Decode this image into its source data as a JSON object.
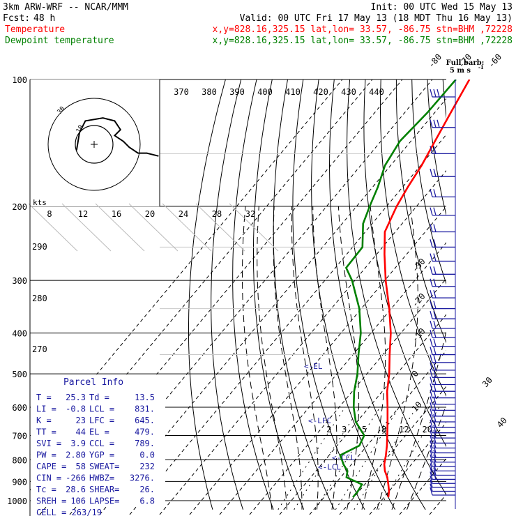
{
  "header": {
    "model": "3km ARW-WRF -- NCAR/MMM",
    "init": "Init: 00 UTC Wed 15 May 13",
    "fcst_label": "Fcst:",
    "fcst_value": "48 h",
    "valid": "Valid: 00 UTC Fri 17 May 13 (18 MDT Thu 16 May 13)",
    "temp_label": "Temperature",
    "temp_loc": "x,y=828.16,325.15   lat,lon= 33.57, -86.75  stn=BHM ,72228",
    "dew_label": "Dewpoint temperature",
    "dew_loc": "x,y=828.16,325.15   lat,lon= 33.57, -86.75  stn=BHM ,72228",
    "barb_note_1": "Full barb:",
    "barb_note_2": "5 m s",
    "barb_note_sup": "-1"
  },
  "colors": {
    "temperature": "#ff0000",
    "dewpoint": "#008000",
    "text_blue": "#1a1aa0",
    "barbs": "#1a1aa0"
  },
  "chart_data": {
    "type": "line",
    "title": "",
    "xlabel": "",
    "ylabel": "",
    "y_scale": "log-pressure",
    "ylim": [
      1000,
      100
    ],
    "pressure_levels": [
      100,
      200,
      300,
      400,
      500,
      600,
      700,
      800,
      900,
      1000
    ],
    "pressure_tick_labels": [
      "100",
      "200",
      "300",
      "400",
      "500",
      "600",
      "700",
      "800",
      "900",
      "1000"
    ],
    "isotherm_labels": [
      "-80",
      "-70",
      "-60",
      "-50",
      "-40",
      "-30",
      "-20",
      "-10",
      "0",
      "10",
      "30",
      "40"
    ],
    "isotherm_label_values": [
      -80,
      -70,
      -60,
      -50,
      -40,
      -30,
      -20,
      -10,
      0,
      10,
      30,
      40
    ],
    "theta_labels": [
      "370",
      "380",
      "390",
      "400",
      "410",
      "420",
      "430",
      "440"
    ],
    "theta_left_labels": [
      "290",
      "280",
      "270"
    ],
    "mixing_ratio_labels": [
      "2",
      "3",
      "5",
      "8",
      "12",
      "20"
    ],
    "mixing_ratio_values": [
      2,
      3,
      5,
      8,
      12,
      20
    ],
    "series": [
      {
        "name": "Temperature",
        "pressure": [
          982,
          950,
          915,
          880,
          850,
          820,
          780,
          740,
          700,
          650,
          600,
          550,
          500,
          450,
          400,
          350,
          300,
          260,
          230,
          200,
          180,
          160,
          140,
          120,
          100
        ],
        "temperature_c": [
          25.3,
          23.8,
          21.6,
          19.2,
          16.6,
          14.5,
          12.4,
          10.0,
          7.2,
          3.4,
          -0.8,
          -5.5,
          -9.8,
          -15.2,
          -21.0,
          -28.5,
          -37.8,
          -45.7,
          -52.0,
          -55.4,
          -57.2,
          -58.8,
          -61.3,
          -64.2,
          -67.5
        ]
      },
      {
        "name": "Dewpoint temperature",
        "pressure": [
          982,
          950,
          915,
          880,
          850,
          820,
          780,
          740,
          700,
          650,
          600,
          550,
          500,
          450,
          400,
          350,
          300,
          280,
          250,
          220,
          200,
          180,
          160,
          140,
          120,
          100
        ],
        "temperature_c": [
          13.5,
          13.4,
          12.8,
          5.6,
          4.1,
          0.9,
          -2.8,
          0.8,
          -0.5,
          -7.2,
          -12.1,
          -16.5,
          -20.4,
          -25.6,
          -31.0,
          -38.5,
          -49.0,
          -54.6,
          -55.1,
          -61.6,
          -64.4,
          -67.2,
          -71.0,
          -73.0,
          -72.0,
          -72.0
        ]
      }
    ],
    "annotations": [
      "EL",
      "LFC",
      "CCL",
      "LCL"
    ],
    "annotation_pressures": [
      479,
      645,
      789,
      831
    ],
    "hodograph": {
      "units": "kts",
      "ring_labels": [
        "8",
        "12",
        "16",
        "20",
        "24",
        "28",
        "32"
      ],
      "small_ring_labels": [
        "10",
        "30"
      ],
      "trace_u": [
        -6,
        -5,
        -3,
        3,
        7,
        9,
        7,
        10,
        12,
        15,
        18,
        22
      ],
      "trace_v": [
        -2,
        4,
        8,
        9,
        8,
        5,
        3,
        1,
        -1,
        -3,
        -3,
        -4
      ]
    },
    "wind_barbs": {
      "pressure": [
        110,
        130,
        150,
        170,
        190,
        210,
        230,
        250,
        270,
        290,
        310,
        330,
        350,
        370,
        390,
        410,
        430,
        450,
        470,
        490,
        510,
        530,
        550,
        570,
        590,
        610,
        630,
        650,
        670,
        690,
        710,
        730,
        750,
        770,
        790,
        810,
        830,
        850,
        870,
        890,
        910,
        930,
        950,
        970
      ],
      "speed_ms": [
        15,
        15,
        10,
        10,
        10,
        10,
        10,
        10,
        10,
        10,
        10,
        10,
        10,
        10,
        10,
        10,
        10,
        10,
        10,
        10,
        10,
        10,
        10,
        10,
        10,
        10,
        10,
        10,
        10,
        10,
        10,
        10,
        10,
        10,
        10,
        10,
        10,
        10,
        10,
        10,
        5,
        5,
        5,
        5
      ]
    }
  },
  "parcel_info": {
    "title": "Parcel Info",
    "rows": [
      [
        "T  =",
        "25.3",
        "Td =",
        "13.5"
      ],
      [
        "LI =",
        "-0.8",
        "LCL =",
        "831."
      ],
      [
        "K  =",
        "23",
        "LFC =",
        "645."
      ],
      [
        "TT =",
        "44",
        "EL =",
        "479."
      ],
      [
        "SVI =",
        "3.9",
        "CCL =",
        "789."
      ],
      [
        "PW =",
        "2.80",
        "YGP =",
        "0.0"
      ],
      [
        "CAPE =",
        "58",
        "SWEAT=",
        "232"
      ],
      [
        "CIN =",
        "-266",
        "HWBZ=",
        "3276."
      ],
      [
        "Tc =",
        "28.6",
        "SHEAR=",
        "26."
      ],
      [
        "SREH =",
        "106",
        "LAPSE=",
        "6.8"
      ]
    ],
    "cell": "CELL = 263/19"
  }
}
